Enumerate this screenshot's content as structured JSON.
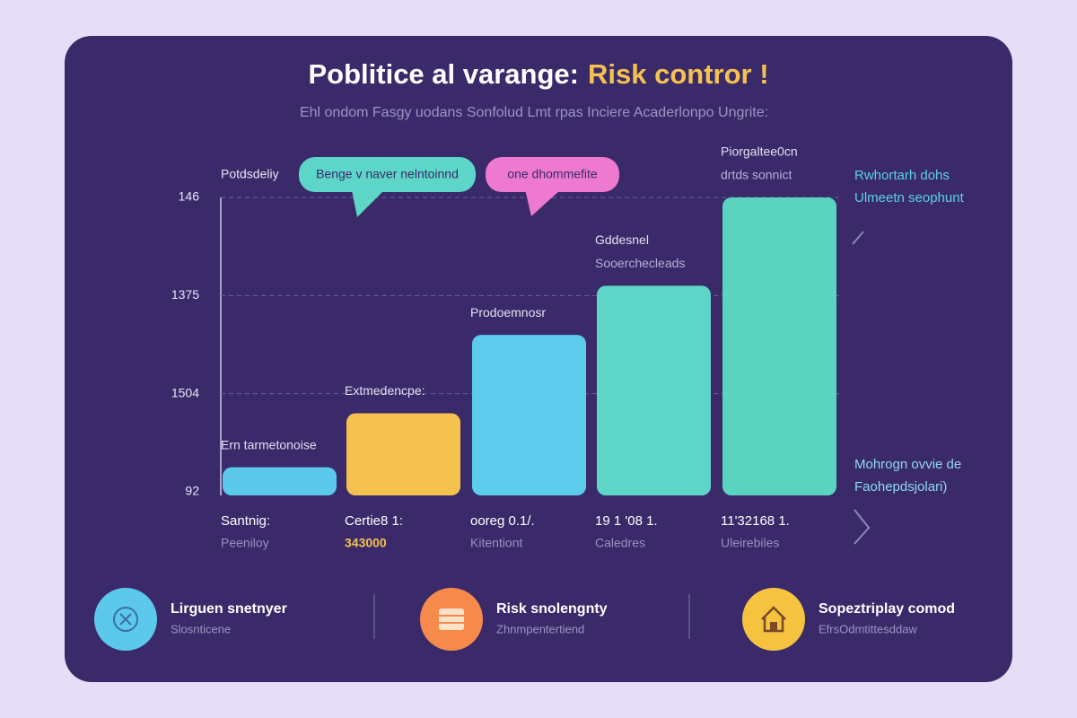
{
  "chart_data": {
    "type": "bar",
    "title": "Poblitice al varange:",
    "title_highlight": "Risk contror !",
    "subtitle": "Ehl ondom Fasgy uodans Sonfolud Lmt rpas Inciere Acaderlonpo Ungrite:",
    "y_axis_label": "Potdsdeliy",
    "categories": [
      "Santnig:",
      "Certie8 1:",
      "ooreg 0.1/.",
      "19 1 '08 1.",
      "11'32168 1."
    ],
    "category_notes": [
      "Peeniloy",
      "343000",
      "Kitentiont",
      "Caledres",
      "Uleirebiles"
    ],
    "category_note_colors": [
      "#9a90bd",
      "#f5c24f",
      "#9a90bd",
      "#9a90bd",
      "#9a90bd"
    ],
    "bar_labels": [
      [
        "Ern tarmetonoise"
      ],
      [
        "Extmedencpe:"
      ],
      [
        "Prodoemnosr"
      ],
      [
        "Gddesnel",
        "Sooerchecleads"
      ],
      [
        "Piorgaltee0cn",
        "drtds sonnict"
      ]
    ],
    "values": [
      0.25,
      0.8,
      1.6,
      2.1,
      3.0
    ],
    "colors": [
      "#5bc8ec",
      "#f5c24f",
      "#5ccbec",
      "#5dd6c8",
      "#5bd4bf"
    ],
    "ylim": [
      0,
      3
    ],
    "yticks": [
      {
        "value": 0,
        "label": "92"
      },
      {
        "value": 1,
        "label": "1504"
      },
      {
        "value": 2,
        "label": "1375"
      },
      {
        "value": 3,
        "label": "146"
      }
    ],
    "grid": true,
    "bubbles": [
      {
        "text": "Benge v naver nelntoinnd",
        "color": "#5dd6c8"
      },
      {
        "text": "one dhommefite",
        "color": "#ee7ad0"
      }
    ],
    "side_notes": [
      {
        "lines": [
          "Rwhortarh dohs",
          "Ulmeetn seophunt"
        ],
        "color": "#5bd0e6"
      },
      {
        "lines": [
          "Mohrogn ovvie de",
          "Faohepdsjolari)"
        ],
        "color": "#8fd7f0"
      }
    ]
  },
  "cards": [
    {
      "title": "Lirguen snetnyer",
      "subtitle": "Slosnticene"
    },
    {
      "title": "Risk snolengnty",
      "subtitle": "Zhnmpentertiend"
    },
    {
      "title": "Sopeztriplay comod",
      "subtitle": "EfrsOdmtittesddaw"
    }
  ]
}
